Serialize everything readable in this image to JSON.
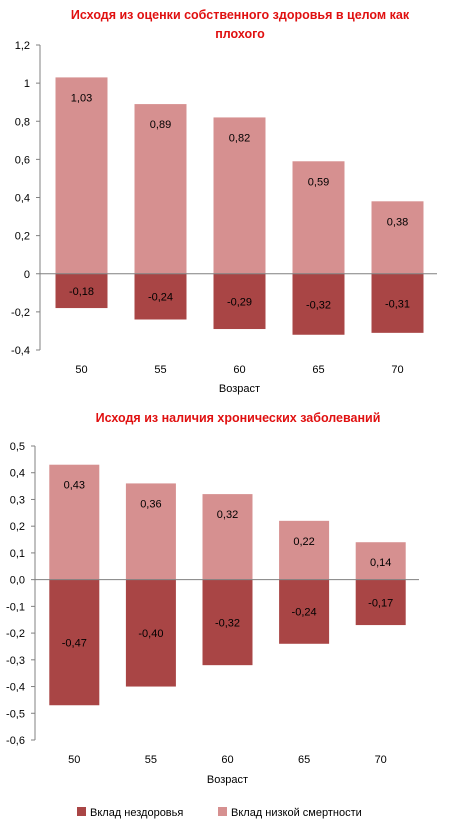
{
  "colors": {
    "unhealth": "#a94545",
    "lowmort": "#d69090",
    "title": "#e01010",
    "axis": "#808080"
  },
  "legend": {
    "unhealth": "Вклад нездоровья",
    "lowmort": "Вклад низкой смертности"
  },
  "chart_data": [
    {
      "type": "bar",
      "stacked": true,
      "title_lines": [
        "Исходя из оценки собственного здоровья в целом как",
        "плохого"
      ],
      "xlabel": "Возраст",
      "ylabel": "",
      "categories": [
        "50",
        "55",
        "60",
        "65",
        "70"
      ],
      "ylim": [
        -0.4,
        1.2
      ],
      "yticks": [
        "1,2",
        "1",
        "0,8",
        "0,6",
        "0,4",
        "0,2",
        "0",
        "-0,2",
        "-0,4"
      ],
      "grid": false,
      "legend_position": "bottom",
      "series": [
        {
          "name": "Вклад низкой смертности",
          "values": [
            1.03,
            0.89,
            0.82,
            0.59,
            0.38
          ],
          "labels": [
            "1,03",
            "0,89",
            "0,82",
            "0,59",
            "0,38"
          ]
        },
        {
          "name": "Вклад нездоровья",
          "values": [
            -0.18,
            -0.24,
            -0.29,
            -0.32,
            -0.31
          ],
          "labels": [
            "-0,18",
            "-0,24",
            "-0,29",
            "-0,32",
            "-0,31"
          ]
        }
      ]
    },
    {
      "type": "bar",
      "stacked": true,
      "title_lines": [
        "Исходя из наличия хронических заболеваний"
      ],
      "xlabel": "Возраст",
      "ylabel": "",
      "categories": [
        "50",
        "55",
        "60",
        "65",
        "70"
      ],
      "ylim": [
        -0.6,
        0.5
      ],
      "yticks": [
        "0,5",
        "0,4",
        "0,3",
        "0,2",
        "0,1",
        "0,0",
        "-0,1",
        "-0,2",
        "-0,3",
        "-0,4",
        "-0,5",
        "-0,6"
      ],
      "grid": false,
      "legend_position": "bottom",
      "series": [
        {
          "name": "Вклад низкой смертности",
          "values": [
            0.43,
            0.36,
            0.32,
            0.22,
            0.14
          ],
          "labels": [
            "0,43",
            "0,36",
            "0,32",
            "0,22",
            "0,14"
          ]
        },
        {
          "name": "Вклад нездоровья",
          "values": [
            -0.47,
            -0.4,
            -0.32,
            -0.24,
            -0.17
          ],
          "labels": [
            "-0,47",
            "-0,40",
            "-0,32",
            "-0,24",
            "-0,17"
          ]
        }
      ]
    }
  ]
}
